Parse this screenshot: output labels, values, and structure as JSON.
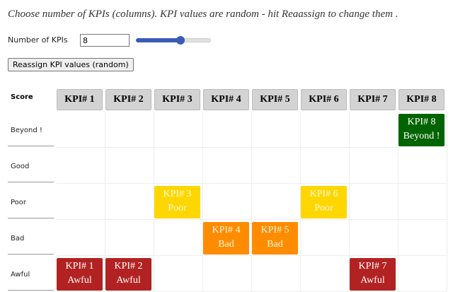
{
  "intro": "Choose number of KPIs (columns). KPI values are random - hit Reaassign to change them .",
  "controls": {
    "count_label": "Number of KPIs",
    "count_value": "8",
    "button": "Reassign KPI values (random)"
  },
  "table": {
    "score_header": "Score",
    "rows": [
      {
        "label": "Beyond !",
        "color": "#006400"
      },
      {
        "label": "Good"
      },
      {
        "label": "Poor",
        "color": "#ffd700"
      },
      {
        "label": "Bad",
        "color": "#ff8c00"
      },
      {
        "label": "Awful",
        "color": "#b22222"
      }
    ],
    "kpis": [
      {
        "name": "KPI# 1",
        "score": "Awful"
      },
      {
        "name": "KPI# 2",
        "score": "Awful"
      },
      {
        "name": "KPI# 3",
        "score": "Poor"
      },
      {
        "name": "KPI# 4",
        "score": "Bad"
      },
      {
        "name": "KPI# 5",
        "score": "Bad"
      },
      {
        "name": "KPI# 6",
        "score": "Poor"
      },
      {
        "name": "KPI# 7",
        "score": "Awful"
      },
      {
        "name": "KPI# 8",
        "score": "Beyond !"
      }
    ]
  }
}
